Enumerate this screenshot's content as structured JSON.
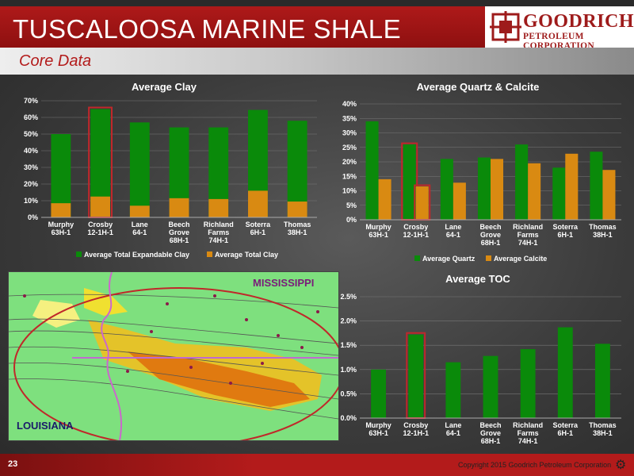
{
  "slide": {
    "title": "TUSCALOOSA MARINE SHALE",
    "subtitle": "Core Data",
    "page_number": "23",
    "copyright": "Copyright 2015 Goodrich Petroleum Corporation",
    "logo_line1": "GOODRICH",
    "logo_line2": "PETROLEUM CORPORATION"
  },
  "map": {
    "state_north": "MISSISSIPPI",
    "state_south": "LOUISIANA"
  },
  "colors": {
    "green": "#0a8a0a",
    "orange": "#d98a12",
    "highlight": "#c0282a",
    "brand_red": "#b31b1b"
  },
  "chart_data": [
    {
      "type": "bar",
      "stacked": false,
      "title": "Average Clay",
      "categories": [
        "Murphy 63H-1",
        "Crosby 12-1H-1",
        "Lane 64-1",
        "Beech Grove 68H-1",
        "Richland Farms 74H-1",
        "Soterra 6H-1",
        "Thomas 38H-1"
      ],
      "series": [
        {
          "name": "Average Total Expandable Clay",
          "values": [
            8.5,
            12.5,
            7,
            11.5,
            11,
            16,
            9.5
          ]
        },
        {
          "name": "Average Total Clay",
          "values": [
            50,
            65,
            57,
            54,
            54,
            64.5,
            58
          ]
        }
      ],
      "ylim": [
        0,
        70
      ],
      "ytick_labels": [
        "0%",
        "10%",
        "20%",
        "30%",
        "40%",
        "50%",
        "60%",
        "70%"
      ],
      "highlight_category": "Crosby 12-1H-1",
      "legend_position": "bottom",
      "grid": true
    },
    {
      "type": "bar",
      "title": "Average  Quartz & Calcite",
      "categories": [
        "Murphy 63H-1",
        "Crosby 12-1H-1",
        "Lane 64-1",
        "Beech Grove 68H-1",
        "Richland Farms 74H-1",
        "Soterra 6H-1",
        "Thomas 38H-1"
      ],
      "series": [
        {
          "name": "Average Quartz",
          "values": [
            34,
            26,
            21,
            21.5,
            26,
            18,
            23.5
          ]
        },
        {
          "name": "Average Calcite",
          "values": [
            14,
            11.5,
            12.8,
            21,
            19.5,
            22.8,
            17.2
          ]
        }
      ],
      "ylim": [
        0,
        40
      ],
      "ytick_labels": [
        "0%",
        "5%",
        "10%",
        "15%",
        "20%",
        "25%",
        "30%",
        "35%",
        "40%"
      ],
      "highlight_category": "Crosby 12-1H-1",
      "legend_position": "bottom",
      "grid": true
    },
    {
      "type": "bar",
      "title": "Average TOC",
      "categories": [
        "Murphy 63H-1",
        "Crosby 12-1H-1",
        "Lane 64-1",
        "Beech Grove 68H-1",
        "Richland Farms 74H-1",
        "Soterra 6H-1",
        "Thomas 38H-1"
      ],
      "series": [
        {
          "values": [
            1.0,
            1.72,
            1.15,
            1.28,
            1.42,
            1.87,
            1.53
          ]
        }
      ],
      "ylim": [
        0,
        2.5
      ],
      "ytick_labels": [
        "0.0%",
        "0.5%",
        "1.0%",
        "1.5%",
        "2.0%",
        "2.5%"
      ],
      "highlight_category": "Crosby 12-1H-1",
      "grid": true
    }
  ]
}
